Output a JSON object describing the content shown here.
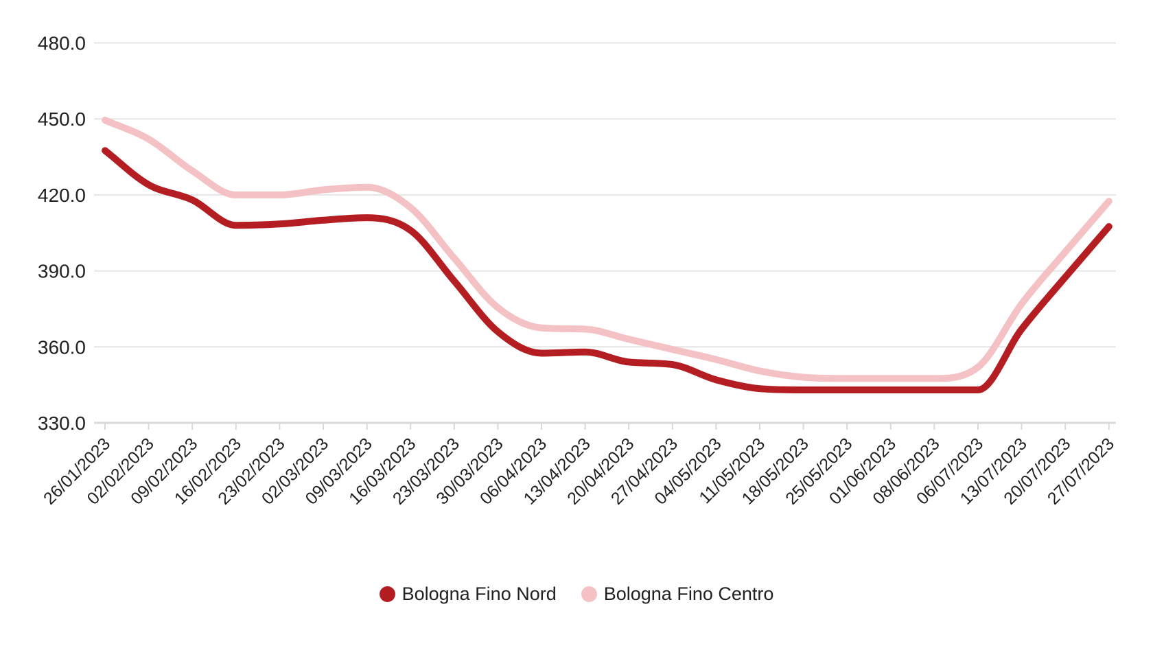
{
  "chart_data": {
    "type": "line",
    "title": "",
    "xlabel": "",
    "ylabel": "",
    "ylim": [
      330,
      480
    ],
    "y_ticks": [
      "480.0",
      "450.0",
      "420.0",
      "390.0",
      "360.0",
      "330.0"
    ],
    "y_tick_values": [
      480,
      450,
      420,
      390,
      360,
      330
    ],
    "grid": true,
    "legend_position": "bottom",
    "x_tick_rotation": -45,
    "curve": "smooth",
    "categories": [
      "26/01/2023",
      "02/02/2023",
      "09/02/2023",
      "16/02/2023",
      "23/02/2023",
      "02/03/2023",
      "09/03/2023",
      "16/03/2023",
      "23/03/2023",
      "30/03/2023",
      "06/04/2023",
      "13/04/2023",
      "20/04/2023",
      "27/04/2023",
      "04/05/2023",
      "11/05/2023",
      "18/05/2023",
      "25/05/2023",
      "01/06/2023",
      "08/06/2023",
      "06/07/2023",
      "13/07/2023",
      "20/07/2023",
      "27/07/2023"
    ],
    "series": [
      {
        "name": "Bologna Fino Nord",
        "color": "#b41e23",
        "values": [
          437.5,
          424,
          418,
          408,
          408.5,
          410,
          411,
          406,
          386,
          366,
          357.5,
          358,
          354,
          353,
          347,
          343.5,
          343,
          343,
          343,
          343,
          343,
          367,
          387.5,
          407.5
        ]
      },
      {
        "name": "Bologna Fino Centro",
        "color": "#f4c2c4",
        "values": [
          449.5,
          442,
          429.5,
          420,
          420,
          422,
          423,
          415,
          395,
          375.5,
          367.5,
          367,
          363,
          359,
          355,
          350.5,
          348,
          347.5,
          347.5,
          347.5,
          352,
          377,
          397.5,
          417.5
        ]
      }
    ]
  },
  "colors": {
    "background": "#ffffff",
    "gridline": "#e6e6e6",
    "axis_line": "#d9d9d9",
    "tick_text": "#212121",
    "legend_text": "#212121"
  }
}
